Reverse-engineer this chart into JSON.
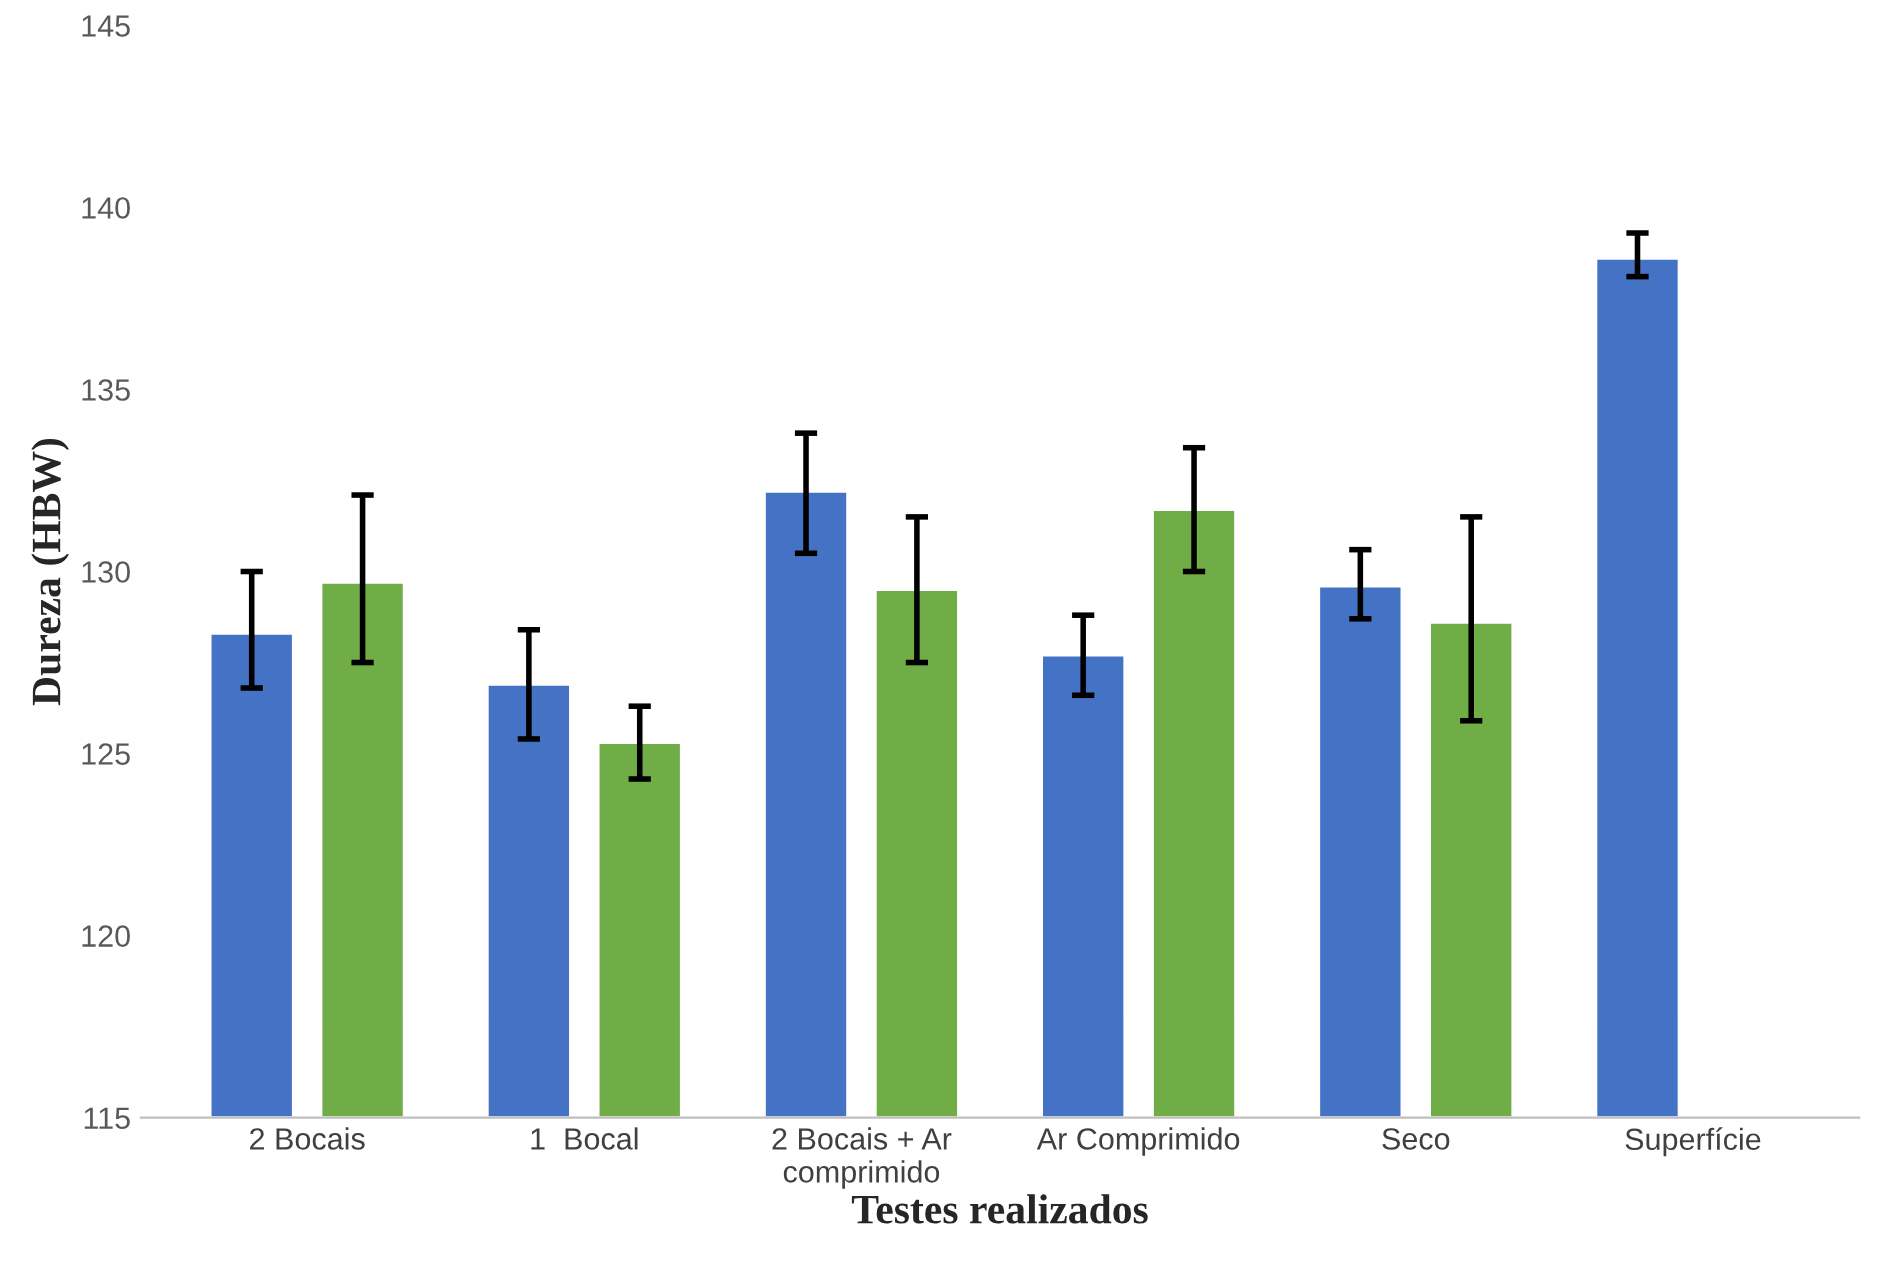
{
  "chart_data": {
    "type": "bar",
    "xlabel": "Testes realizados",
    "ylabel": "Dureza (HBW)",
    "categories": [
      "2 Bocais",
      "1  Bocal",
      "2 Bocais + Ar\ncomprimido",
      "Ar Comprimido",
      "Seco",
      "Superfície"
    ],
    "series": [
      {
        "color": "#4472c4",
        "values": [
          128.3,
          126.9,
          132.2,
          127.7,
          129.6,
          138.6
        ],
        "errors": [
          [
            126.8,
            130.0
          ],
          [
            125.4,
            128.4
          ],
          [
            130.5,
            133.8
          ],
          [
            126.6,
            128.8
          ],
          [
            128.7,
            130.6
          ],
          [
            138.1,
            139.3
          ]
        ]
      },
      {
        "color": "#70ad47",
        "values": [
          129.7,
          125.3,
          129.5,
          131.7,
          128.6,
          null
        ],
        "errors": [
          [
            127.5,
            132.1
          ],
          [
            124.3,
            126.3
          ],
          [
            127.5,
            131.5
          ],
          [
            130.0,
            133.4
          ],
          [
            125.9,
            131.5
          ],
          null
        ]
      }
    ],
    "ylim": [
      115,
      145
    ],
    "yticks": [
      115,
      120,
      125,
      130,
      135,
      140,
      145
    ],
    "grid": false,
    "legend": false
  }
}
